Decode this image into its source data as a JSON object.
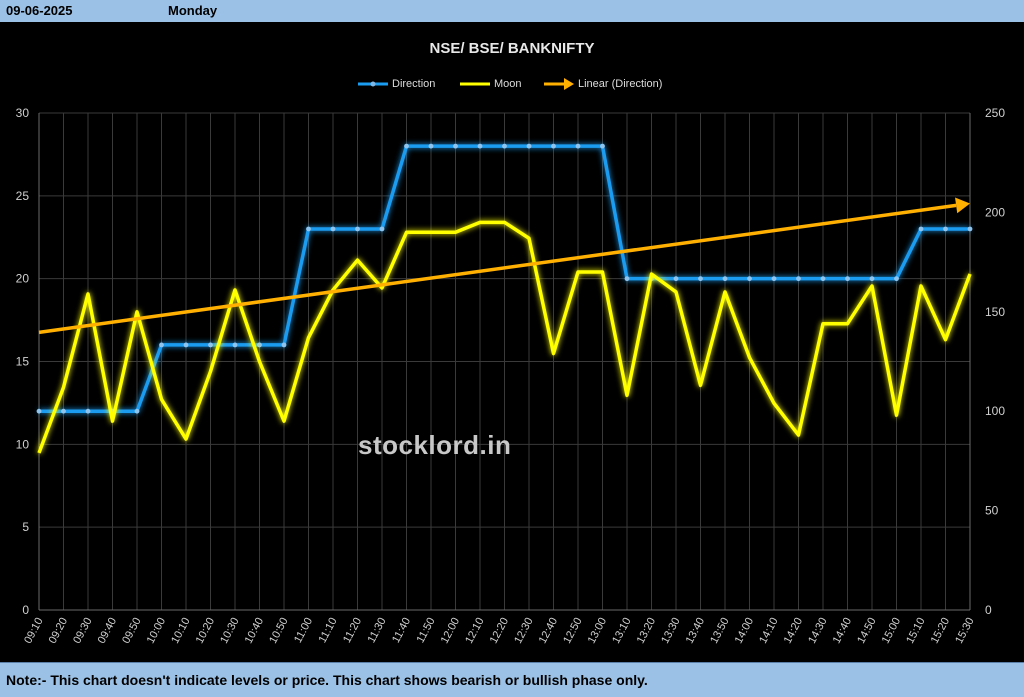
{
  "header": {
    "date": "09-06-2025",
    "day": "Monday"
  },
  "note": "Note:- This chart doesn't indicate levels or price. This chart shows bearish or bullish phase only.",
  "watermark": "stocklord.in",
  "colors": {
    "direction": "#1a9cf0",
    "moon": "#ffff00",
    "trend": "#ffb000",
    "grid": "#3a3a3a",
    "axis_text": "#d0d0d0",
    "header_bg": "#9bc2e6"
  },
  "chart_data": {
    "type": "line",
    "title": "NSE/ BSE/ BANKNIFTY",
    "legend_position": "top",
    "grid": true,
    "x": [
      "09:10",
      "09:20",
      "09:30",
      "09:40",
      "09:50",
      "10:00",
      "10:10",
      "10:20",
      "10:30",
      "10:40",
      "10:50",
      "11:00",
      "11:10",
      "11:20",
      "11:30",
      "11:40",
      "11:50",
      "12:00",
      "12:10",
      "12:20",
      "12:30",
      "12:40",
      "12:50",
      "13:00",
      "13:10",
      "13:20",
      "13:30",
      "13:40",
      "13:50",
      "14:00",
      "14:10",
      "14:20",
      "14:30",
      "14:40",
      "14:50",
      "15:00",
      "15:10",
      "15:20",
      "15:30"
    ],
    "y_left": {
      "min": 0,
      "max": 30,
      "ticks": [
        0,
        5,
        10,
        15,
        20,
        25,
        30
      ]
    },
    "y_right": {
      "min": 0,
      "max": 250,
      "ticks": [
        0,
        50,
        100,
        150,
        200,
        250
      ]
    },
    "series": [
      {
        "name": "Direction",
        "axis": "left",
        "values": [
          12,
          12,
          12,
          12,
          12,
          16,
          16,
          16,
          16,
          16,
          16,
          23,
          23,
          23,
          23,
          28,
          28,
          28,
          28,
          28,
          28,
          28,
          28,
          28,
          20,
          20,
          20,
          20,
          20,
          20,
          20,
          20,
          20,
          20,
          20,
          20,
          23,
          23,
          23
        ]
      },
      {
        "name": "Moon",
        "axis": "right",
        "values": [
          79,
          112,
          159,
          95,
          150,
          106,
          86,
          120,
          161,
          125,
          95,
          137,
          161,
          176,
          162,
          190,
          190,
          190,
          195,
          195,
          187,
          129,
          170,
          170,
          108,
          169,
          160,
          113,
          160,
          127,
          104,
          88,
          144,
          144,
          163,
          98,
          163,
          136,
          169
        ]
      },
      {
        "name": "Linear (Direction)",
        "axis": "left",
        "trend_of": "Direction",
        "start": 16.76,
        "end": 24.54
      }
    ]
  }
}
